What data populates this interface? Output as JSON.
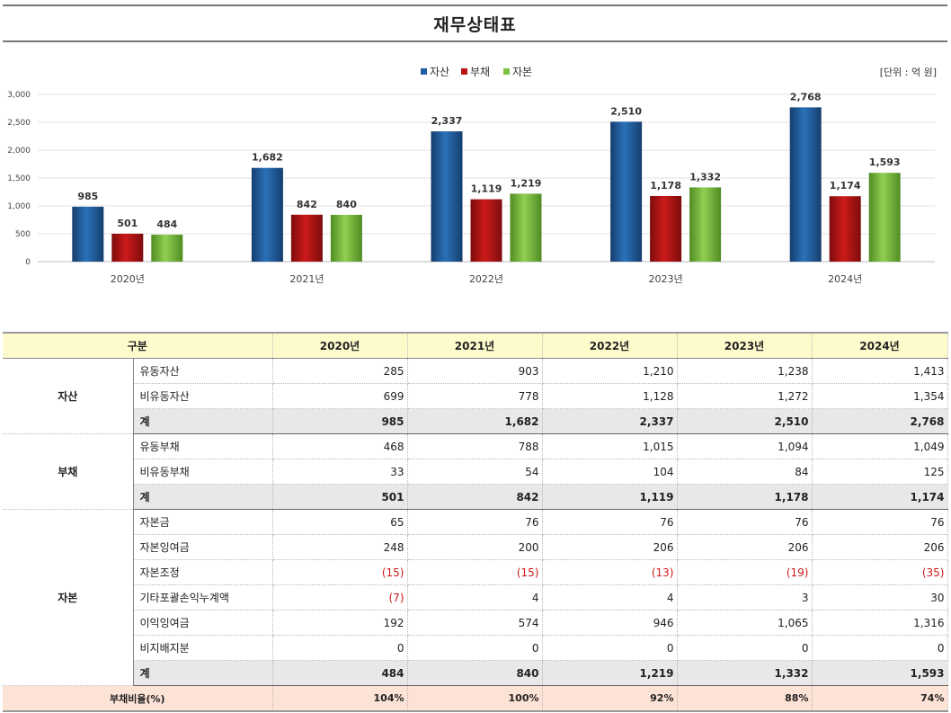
{
  "title": "재무상태표",
  "unit_label": "[단위 : 억 원]",
  "colors": {
    "asset": "#1f5fa3",
    "liability": "#b81414",
    "equity": "#7ac142"
  },
  "chart_data": {
    "type": "bar",
    "categories": [
      "2020년",
      "2021년",
      "2022년",
      "2023년",
      "2024년"
    ],
    "series": [
      {
        "name": "자산",
        "values": [
          985,
          1682,
          2337,
          2510,
          2768
        ],
        "labels": [
          "985",
          "1,682",
          "2,337",
          "2,510",
          "2,768"
        ]
      },
      {
        "name": "부채",
        "values": [
          501,
          842,
          1119,
          1178,
          1174
        ],
        "labels": [
          "501",
          "842",
          "1,119",
          "1,178",
          "1,174"
        ]
      },
      {
        "name": "자본",
        "values": [
          484,
          840,
          1219,
          1332,
          1593
        ],
        "labels": [
          "484",
          "840",
          "1,219",
          "1,332",
          "1,593"
        ]
      }
    ],
    "ylim": [
      0,
      3000
    ],
    "yticks": [
      "0",
      "500",
      "1,000",
      "1,500",
      "2,000",
      "2,500",
      "3,000"
    ],
    "grid": true,
    "legend": "top-center"
  },
  "table": {
    "header": [
      "구분",
      "2020년",
      "2021년",
      "2022년",
      "2023년",
      "2024년"
    ],
    "sections": [
      {
        "group": "자산",
        "rows": [
          {
            "label": "유동자산",
            "values": [
              "285",
              "903",
              "1,210",
              "1,238",
              "1,413"
            ]
          },
          {
            "label": "비유동자산",
            "values": [
              "699",
              "778",
              "1,128",
              "1,272",
              "1,354"
            ]
          },
          {
            "label": "계",
            "values": [
              "985",
              "1,682",
              "2,337",
              "2,510",
              "2,768"
            ]
          }
        ]
      },
      {
        "group": "부채",
        "rows": [
          {
            "label": "유동부채",
            "values": [
              "468",
              "788",
              "1,015",
              "1,094",
              "1,049"
            ]
          },
          {
            "label": "비유동부채",
            "values": [
              "33",
              "54",
              "104",
              "84",
              "125"
            ]
          },
          {
            "label": "계",
            "values": [
              "501",
              "842",
              "1,119",
              "1,178",
              "1,174"
            ]
          }
        ]
      },
      {
        "group": "자본",
        "rows": [
          {
            "label": "자본금",
            "values": [
              "65",
              "76",
              "76",
              "76",
              "76"
            ]
          },
          {
            "label": "자본잉여금",
            "values": [
              "248",
              "200",
              "206",
              "206",
              "206"
            ]
          },
          {
            "label": "자본조정",
            "values": [
              "(15)",
              "(15)",
              "(13)",
              "(19)",
              "(35)"
            ]
          },
          {
            "label": "기타포괄손익누계액",
            "values": [
              "(7)",
              "4",
              "4",
              "3",
              "30"
            ]
          },
          {
            "label": "이익잉여금",
            "values": [
              "192",
              "574",
              "946",
              "1,065",
              "1,316"
            ]
          },
          {
            "label": "비지배지분",
            "values": [
              "0",
              "0",
              "0",
              "0",
              "0"
            ]
          },
          {
            "label": "계",
            "values": [
              "484",
              "840",
              "1,219",
              "1,332",
              "1,593"
            ]
          }
        ]
      }
    ],
    "ratio": {
      "label": "부채비율(%)",
      "values": [
        "104%",
        "100%",
        "92%",
        "88%",
        "74%"
      ]
    }
  }
}
